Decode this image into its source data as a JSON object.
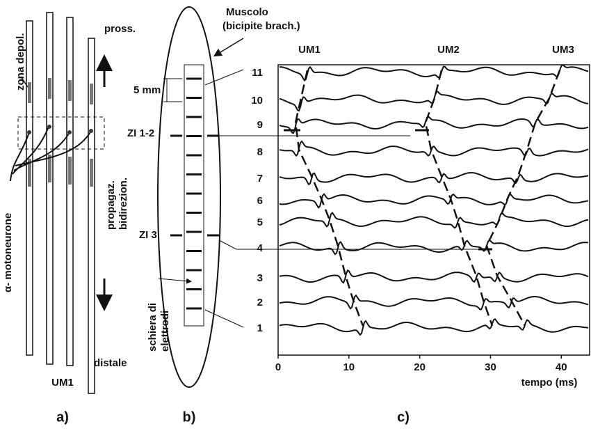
{
  "panel_a": {
    "label": "a)",
    "zone": "zona depol.",
    "proximal": "pross.",
    "propagation": [
      "propagaz.",
      "bidirezion."
    ],
    "motoneuron": "α- motoneurone",
    "distal": "distale",
    "unit": "UM1"
  },
  "panel_b": {
    "label": "b)",
    "muscle": [
      "Muscolo",
      "(bicipite brach.)"
    ],
    "spacing": "5 mm",
    "zi_12": "ZI 1-2",
    "zi_3": "ZI 3",
    "array": [
      "schiera di",
      "elettrodi"
    ]
  },
  "panel_c": {
    "label": "c)",
    "units": [
      "UM1",
      "UM2",
      "UM3"
    ],
    "channels": [
      "11",
      "10",
      "9",
      "8",
      "7",
      "6",
      "5",
      "4",
      "3",
      "2",
      "1"
    ],
    "x_label": "tempo (ms)",
    "xlim": [
      0,
      44
    ],
    "xticks": [
      0,
      10,
      20,
      30,
      40
    ]
  }
}
